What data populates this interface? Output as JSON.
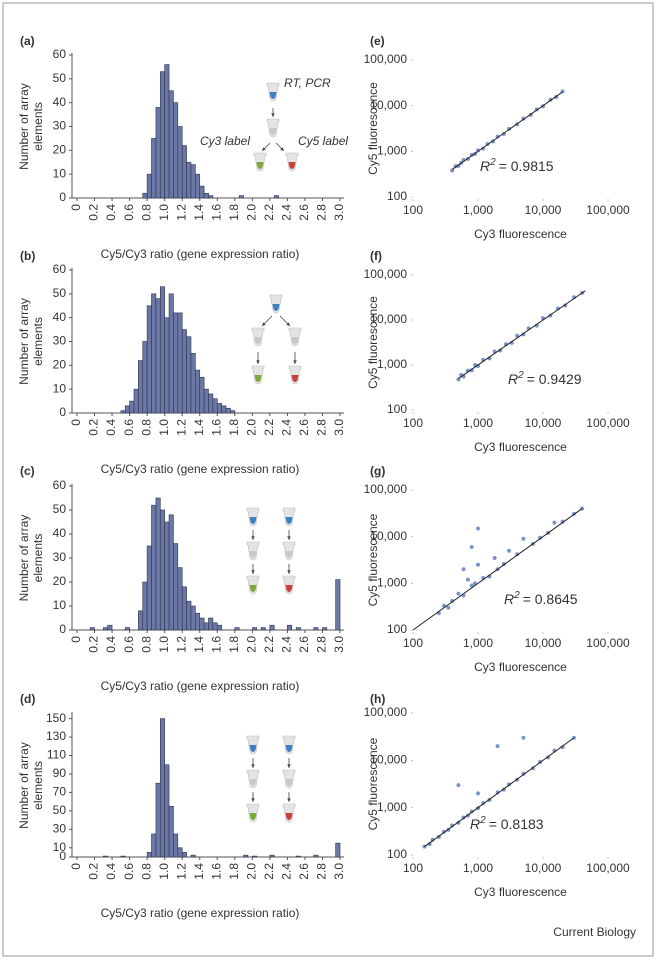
{
  "chart_data": [
    {
      "type": "histogram",
      "label": "(a)",
      "ylabel": [
        "Number of array",
        "elements"
      ],
      "xlabel": "Cy5/Cy3 ratio (gene expression ratio)",
      "color": "#6b78a6",
      "bins": [
        0,
        0.05,
        0.1,
        0.15,
        0.2,
        0.25,
        0.3,
        0.35,
        0.4,
        0.45,
        0.5,
        0.55,
        0.6,
        0.65,
        0.7,
        0.75,
        0.8,
        0.85,
        0.9,
        0.95,
        1,
        1.05,
        1.1,
        1.15,
        1.2,
        1.25,
        1.3,
        1.35,
        1.4,
        1.45,
        1.5,
        1.55,
        1.6,
        1.65,
        1.7,
        1.75,
        1.8,
        1.85,
        1.9,
        1.95,
        2,
        2.05,
        2.1,
        2.15,
        2.2,
        2.25,
        2.3,
        2.35,
        2.4,
        2.45,
        2.5,
        2.55,
        2.6,
        2.65,
        2.7,
        2.75,
        2.8,
        2.85,
        2.9,
        2.95,
        3
      ],
      "counts": [
        0,
        0,
        0,
        0,
        0,
        0,
        0,
        0,
        0,
        0,
        0,
        0,
        0,
        0,
        0,
        2,
        10,
        25,
        38,
        53,
        56,
        45,
        40,
        30,
        22,
        15,
        14,
        10,
        5,
        2,
        1,
        0,
        0,
        0,
        0,
        0,
        0,
        1,
        0,
        0,
        0,
        0,
        0,
        0,
        0,
        1,
        0,
        0,
        0,
        0,
        0,
        0,
        0,
        0,
        0,
        0,
        0,
        0,
        0,
        0
      ],
      "xlim": [
        0,
        3
      ],
      "xticks": [
        0,
        0.2,
        0.4,
        0.6,
        0.8,
        {
          "value": 1,
          "label": "1.0"
        },
        1.2,
        1.4,
        1.6,
        1.8,
        {
          "value": 2,
          "label": "2.0"
        },
        2.2,
        2.4,
        2.6,
        2.8,
        {
          "value": 3,
          "label": "3.0"
        }
      ],
      "ylim": [
        0,
        60
      ],
      "yticks": [
        0,
        10,
        20,
        30,
        40,
        50,
        60
      ],
      "annotations": [
        "RT, PCR",
        "Cy3 label",
        "Cy5 label"
      ]
    },
    {
      "type": "histogram",
      "label": "(b)",
      "ylabel": [
        "Number of array",
        "elements"
      ],
      "xlabel": "Cy5/Cy3 ratio (gene expression ratio)",
      "color": "#6b78a6",
      "bins": [
        0,
        0.05,
        0.1,
        0.15,
        0.2,
        0.25,
        0.3,
        0.35,
        0.4,
        0.45,
        0.5,
        0.55,
        0.6,
        0.65,
        0.7,
        0.75,
        0.8,
        0.85,
        0.9,
        0.95,
        1,
        1.05,
        1.1,
        1.15,
        1.2,
        1.25,
        1.3,
        1.35,
        1.4,
        1.45,
        1.5,
        1.55,
        1.6,
        1.65,
        1.7,
        1.75,
        1.8,
        1.85,
        1.9,
        1.95,
        2,
        2.05,
        2.1,
        2.15,
        2.2,
        2.25,
        2.3,
        2.35,
        2.4,
        2.45,
        2.5,
        2.55,
        2.6,
        2.65,
        2.7,
        2.75,
        2.8,
        2.85,
        2.9,
        2.95,
        3
      ],
      "counts": [
        0,
        0,
        0,
        0,
        0,
        0,
        0,
        0,
        0,
        0,
        1,
        3,
        5,
        10,
        22,
        30,
        45,
        50,
        48,
        53,
        40,
        50,
        42,
        42,
        35,
        32,
        25,
        18,
        15,
        10,
        8,
        6,
        4,
        3,
        2,
        1,
        0,
        0,
        0,
        0,
        0,
        0,
        0,
        0,
        0,
        0,
        0,
        0,
        0,
        0,
        0,
        0,
        0,
        0,
        0,
        0,
        0,
        0,
        0,
        0
      ],
      "xlim": [
        0,
        3
      ],
      "xticks": [
        0,
        0.2,
        0.4,
        0.6,
        0.8,
        {
          "value": 1,
          "label": "1.0"
        },
        1.2,
        1.4,
        1.6,
        1.8,
        {
          "value": 2,
          "label": "2.0"
        },
        2.2,
        2.4,
        2.6,
        2.8,
        {
          "value": 3,
          "label": "3.0"
        }
      ],
      "ylim": [
        0,
        60
      ],
      "yticks": [
        0,
        10,
        20,
        30,
        40,
        50,
        60
      ]
    },
    {
      "type": "histogram",
      "label": "(c)",
      "ylabel": [
        "Number of array",
        "elements"
      ],
      "xlabel": "Cy5/Cy3 ratio (gene expression ratio)",
      "color": "#6b78a6",
      "bins": [
        0,
        0.05,
        0.1,
        0.15,
        0.2,
        0.25,
        0.3,
        0.35,
        0.4,
        0.45,
        0.5,
        0.55,
        0.6,
        0.65,
        0.7,
        0.75,
        0.8,
        0.85,
        0.9,
        0.95,
        1,
        1.05,
        1.1,
        1.15,
        1.2,
        1.25,
        1.3,
        1.35,
        1.4,
        1.45,
        1.5,
        1.55,
        1.6,
        1.65,
        1.7,
        1.75,
        1.8,
        1.85,
        1.9,
        1.95,
        2,
        2.05,
        2.1,
        2.15,
        2.2,
        2.25,
        2.3,
        2.35,
        2.4,
        2.45,
        2.5,
        2.55,
        2.6,
        2.65,
        2.7,
        2.75,
        2.8,
        2.85,
        2.9,
        2.95,
        3
      ],
      "counts": [
        0,
        0,
        0,
        1,
        0,
        0,
        1,
        2,
        0,
        0,
        0,
        1,
        0,
        0,
        8,
        20,
        35,
        52,
        55,
        50,
        45,
        48,
        36,
        26,
        18,
        12,
        10,
        7,
        5,
        3,
        5,
        3,
        2,
        0,
        0,
        0,
        1,
        0,
        0,
        0,
        1,
        0,
        1,
        0,
        2,
        0,
        0,
        0,
        2,
        0,
        1,
        0,
        0,
        0,
        1,
        0,
        1,
        0,
        0,
        21
      ],
      "xlim": [
        0,
        3
      ],
      "xticks": [
        0,
        0.2,
        0.4,
        0.6,
        0.8,
        {
          "value": 1,
          "label": "1.0"
        },
        1.2,
        1.4,
        1.6,
        1.8,
        {
          "value": 2,
          "label": "2.0"
        },
        2.2,
        2.4,
        2.6,
        2.8,
        {
          "value": 3,
          "label": "3.0"
        }
      ],
      "ylim": [
        0,
        60
      ],
      "yticks": [
        0,
        10,
        20,
        30,
        40,
        50,
        60
      ]
    },
    {
      "type": "histogram",
      "label": "(d)",
      "ylabel": [
        "Number of array",
        "elements"
      ],
      "xlabel": "Cy5/Cy3 ratio (gene expression ratio)",
      "color": "#6b78a6",
      "bins": [
        0,
        0.05,
        0.1,
        0.15,
        0.2,
        0.25,
        0.3,
        0.35,
        0.4,
        0.45,
        0.5,
        0.55,
        0.6,
        0.65,
        0.7,
        0.75,
        0.8,
        0.85,
        0.9,
        0.95,
        1,
        1.05,
        1.1,
        1.15,
        1.2,
        1.25,
        1.3,
        1.35,
        1.4,
        1.45,
        1.5,
        1.55,
        1.6,
        1.65,
        1.7,
        1.75,
        1.8,
        1.85,
        1.9,
        1.95,
        2,
        2.05,
        2.1,
        2.15,
        2.2,
        2.25,
        2.3,
        2.35,
        2.4,
        2.45,
        2.5,
        2.55,
        2.6,
        2.65,
        2.7,
        2.75,
        2.8,
        2.85,
        2.9,
        2.95,
        3
      ],
      "counts": [
        0,
        0,
        0,
        0,
        0,
        0,
        1,
        0,
        0,
        0,
        1,
        0,
        0,
        0,
        0,
        0,
        5,
        25,
        80,
        150,
        100,
        55,
        25,
        10,
        5,
        0,
        2,
        0,
        0,
        0,
        0,
        0,
        0,
        0,
        0,
        0,
        0,
        0,
        2,
        0,
        1,
        0,
        0,
        0,
        2,
        0,
        0,
        0,
        0,
        0,
        1,
        0,
        0,
        0,
        2,
        0,
        0,
        0,
        0,
        15
      ],
      "xlim": [
        0,
        3
      ],
      "xticks": [
        0,
        0.2,
        0.4,
        0.6,
        0.8,
        {
          "value": 1,
          "label": "1.0"
        },
        1.2,
        1.4,
        1.6,
        1.8,
        {
          "value": 2,
          "label": "2.0"
        },
        2.2,
        2.4,
        2.6,
        2.8,
        {
          "value": 3,
          "label": "3.0"
        }
      ],
      "ylim": [
        0,
        155
      ],
      "yticks": [
        0,
        10,
        30,
        50,
        70,
        90,
        110,
        130,
        150
      ]
    },
    {
      "type": "scatter",
      "label": "(e)",
      "xlabel": "Cy3 fluorescence",
      "ylabel": "Cy5 fluorescence",
      "color": "#5b79b8",
      "log_scale": true,
      "xlim": [
        100,
        100000
      ],
      "ylim": [
        100,
        100000
      ],
      "xticks": [
        100,
        {
          "value": 1000,
          "label": "1,000"
        },
        {
          "value": 10000,
          "label": "10,000"
        },
        {
          "value": 100000,
          "label": "100,000"
        }
      ],
      "yticks": [
        100,
        {
          "value": 1000,
          "label": "1,000"
        },
        {
          "value": 10000,
          "label": "10,000"
        },
        {
          "value": 100000,
          "label": "100,000"
        }
      ],
      "x": [
        400,
        450,
        500,
        550,
        600,
        700,
        800,
        900,
        1000,
        1200,
        1400,
        1700,
        2000,
        2500,
        3000,
        4000,
        5000,
        6500,
        8000,
        10000,
        13000,
        16000,
        20000
      ],
      "y": [
        380,
        470,
        480,
        560,
        650,
        680,
        830,
        880,
        1050,
        1150,
        1450,
        1650,
        2100,
        2400,
        3100,
        3900,
        5200,
        6300,
        8300,
        9700,
        13500,
        15500,
        20500
      ],
      "fit": {
        "x": [
          400,
          20000
        ],
        "y": [
          400,
          20000
        ]
      },
      "annotation": [
        "R",
        "2",
        "= 0.9815"
      ]
    },
    {
      "type": "scatter",
      "label": "(f)",
      "xlabel": "Cy3 fluorescence",
      "ylabel": "Cy5 fluorescence",
      "color": "#5b79b8",
      "log_scale": true,
      "xlim": [
        100,
        100000
      ],
      "ylim": [
        100,
        100000
      ],
      "xticks": [
        100,
        {
          "value": 1000,
          "label": "1,000"
        },
        {
          "value": 10000,
          "label": "10,000"
        },
        {
          "value": 100000,
          "label": "100,000"
        }
      ],
      "yticks": [
        100,
        {
          "value": 1000,
          "label": "1,000"
        },
        {
          "value": 10000,
          "label": "10,000"
        },
        {
          "value": 100000,
          "label": "100,000"
        }
      ],
      "x": [
        500,
        550,
        600,
        700,
        800,
        900,
        1000,
        1200,
        1500,
        1800,
        2200,
        2700,
        3300,
        4000,
        5000,
        6000,
        8000,
        10000,
        13000,
        17000,
        22000,
        30000,
        40000
      ],
      "y": [
        480,
        600,
        550,
        750,
        760,
        1000,
        950,
        1300,
        1400,
        2000,
        2100,
        2900,
        3100,
        4500,
        4800,
        6500,
        7500,
        11000,
        12500,
        18000,
        21000,
        32000,
        40000
      ],
      "fit": {
        "x": [
          500,
          45000
        ],
        "y": [
          500,
          45000
        ]
      },
      "annotation": [
        "R",
        "2",
        "= 0.9429"
      ]
    },
    {
      "type": "scatter",
      "label": "(g)",
      "xlabel": "Cy3 fluorescence",
      "ylabel": "Cy5 fluorescence",
      "color": "#5b79b8",
      "log_scale": true,
      "xlim": [
        100,
        100000
      ],
      "ylim": [
        100,
        100000
      ],
      "xticks": [
        100,
        {
          "value": 1000,
          "label": "1,000"
        },
        {
          "value": 10000,
          "label": "10,000"
        },
        {
          "value": 100000,
          "label": "100,000"
        }
      ],
      "yticks": [
        100,
        {
          "value": 1000,
          "label": "1,000"
        },
        {
          "value": 10000,
          "label": "10,000"
        },
        {
          "value": 100000,
          "label": "100,000"
        }
      ],
      "x": [
        250,
        300,
        350,
        400,
        500,
        600,
        700,
        800,
        900,
        1000,
        1200,
        1500,
        1800,
        2000,
        2500,
        3000,
        4000,
        5000,
        7000,
        9000,
        12000,
        15000,
        20000,
        30000,
        40000,
        600,
        800,
        1000
      ],
      "y": [
        230,
        330,
        300,
        420,
        600,
        550,
        1200,
        900,
        1000,
        2500,
        1300,
        1400,
        3500,
        2000,
        2600,
        5000,
        4200,
        9000,
        7000,
        9500,
        12000,
        20000,
        21000,
        31000,
        40000,
        2000,
        6000,
        15000
      ],
      "fit": {
        "x": [
          100,
          40000
        ],
        "y": [
          100,
          40000
        ]
      },
      "annotation": [
        "R",
        "2",
        "= 0.8645"
      ]
    },
    {
      "type": "scatter",
      "label": "(h)",
      "xlabel": "Cy3 fluorescence",
      "ylabel": "Cy5 fluorescence",
      "color": "#5b79b8",
      "log_scale": true,
      "xlim": [
        100,
        100000
      ],
      "ylim": [
        100,
        100000
      ],
      "xticks": [
        100,
        {
          "value": 1000,
          "label": "1,000"
        },
        {
          "value": 10000,
          "label": "10,000"
        },
        {
          "value": 100000,
          "label": "100,000"
        }
      ],
      "yticks": [
        100,
        {
          "value": 1000,
          "label": "1,000"
        },
        {
          "value": 10000,
          "label": "10,000"
        },
        {
          "value": 100000,
          "label": "100,000"
        }
      ],
      "x": [
        150,
        180,
        200,
        250,
        300,
        350,
        400,
        500,
        600,
        700,
        800,
        1000,
        1200,
        1500,
        2000,
        2500,
        3000,
        4000,
        5000,
        7000,
        9000,
        12000,
        15000,
        20000,
        30000,
        500,
        1000,
        2000,
        5000
      ],
      "y": [
        150,
        170,
        210,
        240,
        310,
        340,
        420,
        480,
        620,
        680,
        830,
        980,
        1250,
        1450,
        2100,
        2400,
        3100,
        3900,
        5200,
        6800,
        9200,
        11500,
        16000,
        19000,
        30000,
        3000,
        2000,
        20000,
        30000
      ],
      "fit": {
        "x": [
          150,
          30000
        ],
        "y": [
          150,
          30000
        ]
      },
      "annotation": [
        "R",
        "2",
        "= 0.8183"
      ]
    }
  ],
  "footer": "Current Biology"
}
